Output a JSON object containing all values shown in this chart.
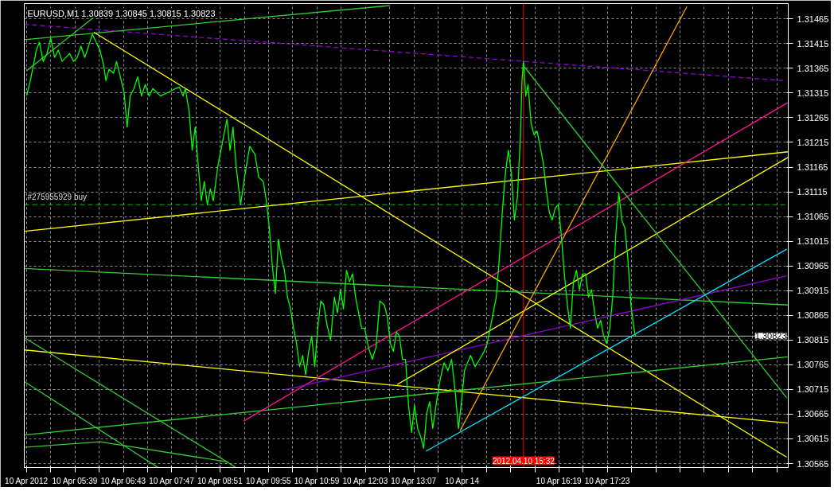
{
  "chart_data": {
    "type": "line",
    "title": "EURUSD,M1  1.30839 1.30845 1.30815 1.30823",
    "grid": true,
    "xlim": [
      "2012-04-10T04:32",
      "2012-04-10T21:22"
    ],
    "ylim": [
      1.30557,
      1.31496
    ],
    "xticks": [
      {
        "value": "2012-04-10T04:35",
        "label": "10 Apr 2012"
      },
      {
        "value": "2012-04-10T05:07",
        "label": null
      },
      {
        "value": "2012-04-10T05:39",
        "label": "10 Apr 05:39"
      },
      {
        "value": "2012-04-10T06:11",
        "label": null
      },
      {
        "value": "2012-04-10T06:43",
        "label": "10 Apr 06:43"
      },
      {
        "value": "2012-04-10T07:15",
        "label": null
      },
      {
        "value": "2012-04-10T07:47",
        "label": "10 Apr 07:47"
      },
      {
        "value": "2012-04-10T08:19",
        "label": null
      },
      {
        "value": "2012-04-10T08:51",
        "label": "10 Apr 08:51"
      },
      {
        "value": "2012-04-10T09:23",
        "label": null
      },
      {
        "value": "2012-04-10T09:55",
        "label": "10 Apr 09:55"
      },
      {
        "value": "2012-04-10T10:27",
        "label": null
      },
      {
        "value": "2012-04-10T10:59",
        "label": "10 Apr 10:59"
      },
      {
        "value": "2012-04-10T11:31",
        "label": null
      },
      {
        "value": "2012-04-10T12:03",
        "label": "10 Apr 12:03"
      },
      {
        "value": "2012-04-10T12:35",
        "label": null
      },
      {
        "value": "2012-04-10T13:07",
        "label": "10 Apr 13:07"
      },
      {
        "value": "2012-04-10T13:39",
        "label": null
      },
      {
        "value": "2012-04-10T14:11",
        "label": "10 Apr 14"
      },
      {
        "value": "2012-04-10T14:43",
        "label": null
      },
      {
        "value": "2012-04-10T15:15",
        "label": null
      },
      {
        "value": "2012-04-10T15:47",
        "label": null
      },
      {
        "value": "2012-04-10T16:19",
        "label": "10 Apr 16:19"
      },
      {
        "value": "2012-04-10T16:51",
        "label": null
      },
      {
        "value": "2012-04-10T17:23",
        "label": "10 Apr 17:23"
      },
      {
        "value": "2012-04-10T17:55",
        "label": null
      },
      {
        "value": "2012-04-10T18:27",
        "label": null
      },
      {
        "value": "2012-04-10T18:59",
        "label": null
      },
      {
        "value": "2012-04-10T19:31",
        "label": null
      },
      {
        "value": "2012-04-10T20:03",
        "label": null
      },
      {
        "value": "2012-04-10T20:35",
        "label": null
      },
      {
        "value": "2012-04-10T21:07",
        "label": null
      }
    ],
    "yticks": [
      1.30565,
      1.30615,
      1.30665,
      1.30715,
      1.30765,
      1.30815,
      1.30865,
      1.30915,
      1.30965,
      1.31015,
      1.31065,
      1.31115,
      1.31165,
      1.31215,
      1.31265,
      1.31315,
      1.31365,
      1.31415,
      1.31465
    ],
    "ref_lines": [
      {
        "axis": "y",
        "value": 1.31089,
        "label": "#275955929 buy",
        "color": "#00c000",
        "line_style": "dashed"
      },
      {
        "axis": "y",
        "value": 1.30823,
        "label": "1.30823",
        "color": "#c0c0c0"
      },
      {
        "axis": "x",
        "value": "2012-04-10T15:32",
        "label": "2012.04.10 15:32",
        "color": "#ff0000"
      }
    ],
    "series": [
      {
        "color": "#32cd32",
        "x": [
          "2012-04-10T04:32",
          "2012-04-10T12:35"
        ],
        "values": [
          1.31423,
          1.31492
        ]
      },
      {
        "color": "#32cd32",
        "x": [
          "2012-04-10T04:35",
          "2012-04-10T06:20"
        ],
        "values": [
          1.3136,
          1.31488
        ]
      },
      {
        "color": "#9400d3",
        "line_style": "dashed",
        "x": [
          "2012-04-10T04:32",
          "2012-04-10T21:17"
        ],
        "values": [
          1.31454,
          1.3134
        ]
      },
      {
        "color": "#ffff00",
        "x": [
          "2012-04-10T06:04",
          "2012-04-10T21:20"
        ],
        "values": [
          1.31438,
          1.30578
        ]
      },
      {
        "color": "#ffff00",
        "x": [
          "2012-04-10T04:32",
          "2012-04-10T21:22"
        ],
        "values": [
          1.31035,
          1.31196
        ]
      },
      {
        "color": "#32cd32",
        "x": [
          "2012-04-10T04:32",
          "2012-04-10T21:22"
        ],
        "values": [
          1.3096,
          1.30886
        ]
      },
      {
        "color": "#ffff00",
        "x": [
          "2012-04-10T04:32",
          "2012-04-10T21:22"
        ],
        "values": [
          1.30795,
          1.30647
        ]
      },
      {
        "color": "#32cd32",
        "x": [
          "2012-04-10T04:32",
          "2012-04-10T09:12"
        ],
        "values": [
          1.3082,
          1.30557
        ]
      },
      {
        "color": "#32cd32",
        "x": [
          "2012-04-10T04:32",
          "2012-04-10T07:29"
        ],
        "values": [
          1.30731,
          1.30557
        ]
      },
      {
        "color": "#32cd32",
        "x": [
          "2012-04-10T04:32",
          "2012-04-10T21:22"
        ],
        "values": [
          1.30623,
          1.30781
        ]
      },
      {
        "color": "#32cd32",
        "x": [
          "2012-04-10T04:32",
          "2012-04-10T06:12",
          "2012-04-10T09:02"
        ],
        "values": [
          1.30598,
          1.30609,
          1.30568
        ]
      },
      {
        "color": "#ff1493",
        "x": [
          "2012-04-10T09:22",
          "2012-04-10T21:22"
        ],
        "values": [
          1.30651,
          1.31296
        ]
      },
      {
        "color": "#9400d3",
        "x": [
          "2012-04-10T10:15",
          "2012-04-10T21:20"
        ],
        "values": [
          1.30714,
          1.30945
        ]
      },
      {
        "color": "#ffff00",
        "x": [
          "2012-04-10T12:45",
          "2012-04-10T21:22"
        ],
        "values": [
          1.30725,
          1.31185
        ]
      },
      {
        "color": "#ffa500",
        "x": [
          "2012-04-10T14:08",
          "2012-04-10T19:08"
        ],
        "values": [
          1.30631,
          1.3149
        ]
      },
      {
        "color": "#00e5ff",
        "x": [
          "2012-04-10T13:23",
          "2012-04-10T21:20"
        ],
        "values": [
          1.3059,
          1.30999
        ]
      },
      {
        "color": "#32cd32",
        "x": [
          "2012-04-10T15:31",
          "2012-04-10T21:20"
        ],
        "values": [
          1.31372,
          1.30698
        ]
      },
      {
        "color": "#00ff00",
        "x": [
          "2012-04-10T04:35",
          "2012-04-10T04:40",
          "2012-04-10T04:44",
          "2012-04-10T04:48",
          "2012-04-10T04:52",
          "2012-04-10T04:57",
          "2012-04-10T05:02",
          "2012-04-10T05:07",
          "2012-04-10T05:12",
          "2012-04-10T05:17",
          "2012-04-10T05:22",
          "2012-04-10T05:27",
          "2012-04-10T05:32",
          "2012-04-10T05:37",
          "2012-04-10T05:42",
          "2012-04-10T05:47",
          "2012-04-10T05:52",
          "2012-04-10T05:57",
          "2012-04-10T06:02",
          "2012-04-10T06:07",
          "2012-04-10T06:12",
          "2012-04-10T06:17",
          "2012-04-10T06:20",
          "2012-04-10T06:24",
          "2012-04-10T06:30",
          "2012-04-10T06:34",
          "2012-04-10T06:39",
          "2012-04-10T06:44",
          "2012-04-10T06:48",
          "2012-04-10T06:52",
          "2012-04-10T06:57",
          "2012-04-10T07:02",
          "2012-04-10T07:07",
          "2012-04-10T07:12",
          "2012-04-10T07:17",
          "2012-04-10T07:22",
          "2012-04-10T07:32",
          "2012-04-10T07:42",
          "2012-04-10T07:52",
          "2012-04-10T07:57",
          "2012-04-10T08:02",
          "2012-04-10T08:05",
          "2012-04-10T08:10",
          "2012-04-10T08:14",
          "2012-04-10T08:18",
          "2012-04-10T08:22",
          "2012-04-10T08:26",
          "2012-04-10T08:30",
          "2012-04-10T08:34",
          "2012-04-10T08:38",
          "2012-04-10T08:42",
          "2012-04-10T08:48",
          "2012-04-10T08:54",
          "2012-04-10T09:00",
          "2012-04-10T09:04",
          "2012-04-10T09:08",
          "2012-04-10T09:12",
          "2012-04-10T09:18",
          "2012-04-10T09:24",
          "2012-04-10T09:30",
          "2012-04-10T09:37",
          "2012-04-10T09:42",
          "2012-04-10T09:48",
          "2012-04-10T09:52",
          "2012-04-10T09:56",
          "2012-04-10T10:00",
          "2012-04-10T10:04",
          "2012-04-10T10:08",
          "2012-04-10T10:12",
          "2012-04-10T10:16",
          "2012-04-10T10:20",
          "2012-04-10T10:24",
          "2012-04-10T10:28",
          "2012-04-10T10:32",
          "2012-04-10T10:36",
          "2012-04-10T10:40",
          "2012-04-10T10:44",
          "2012-04-10T10:48",
          "2012-04-10T10:52",
          "2012-04-10T10:56",
          "2012-04-10T11:00",
          "2012-04-10T11:04",
          "2012-04-10T11:08",
          "2012-04-10T11:12",
          "2012-04-10T11:17",
          "2012-04-10T11:22",
          "2012-04-10T11:26",
          "2012-04-10T11:30",
          "2012-04-10T11:34",
          "2012-04-10T11:38",
          "2012-04-10T11:42",
          "2012-04-10T11:46",
          "2012-04-10T11:50",
          "2012-04-10T11:54",
          "2012-04-10T11:58",
          "2012-04-10T12:02",
          "2012-04-10T12:07",
          "2012-04-10T12:12",
          "2012-04-10T12:17",
          "2012-04-10T12:22",
          "2012-04-10T12:28",
          "2012-04-10T12:32",
          "2012-04-10T12:36",
          "2012-04-10T12:40",
          "2012-04-10T12:44",
          "2012-04-10T12:48",
          "2012-04-10T12:52",
          "2012-04-10T12:56",
          "2012-04-10T13:00",
          "2012-04-10T13:04",
          "2012-04-10T13:08",
          "2012-04-10T13:12",
          "2012-04-10T13:16",
          "2012-04-10T13:20",
          "2012-04-10T13:24",
          "2012-04-10T13:28",
          "2012-04-10T13:32",
          "2012-04-10T13:37",
          "2012-04-10T13:42",
          "2012-04-10T13:47",
          "2012-04-10T13:52",
          "2012-04-10T13:57",
          "2012-04-10T14:02",
          "2012-04-10T14:06",
          "2012-04-10T14:10",
          "2012-04-10T14:14",
          "2012-04-10T14:18",
          "2012-04-10T14:22",
          "2012-04-10T14:28",
          "2012-04-10T14:34",
          "2012-04-10T14:40",
          "2012-04-10T14:44",
          "2012-04-10T14:48",
          "2012-04-10T14:52",
          "2012-04-10T14:56",
          "2012-04-10T15:00",
          "2012-04-10T15:04",
          "2012-04-10T15:08",
          "2012-04-10T15:12",
          "2012-04-10T15:16",
          "2012-04-10T15:20",
          "2012-04-10T15:24",
          "2012-04-10T15:28",
          "2012-04-10T15:30",
          "2012-04-10T15:32",
          "2012-04-10T15:35",
          "2012-04-10T15:38",
          "2012-04-10T15:42",
          "2012-04-10T15:46",
          "2012-04-10T15:50",
          "2012-04-10T15:54",
          "2012-04-10T15:58",
          "2012-04-10T16:02",
          "2012-04-10T16:06",
          "2012-04-10T16:10",
          "2012-04-10T16:14",
          "2012-04-10T16:18",
          "2012-04-10T16:22",
          "2012-04-10T16:26",
          "2012-04-10T16:30",
          "2012-04-10T16:34",
          "2012-04-10T16:38",
          "2012-04-10T16:42",
          "2012-04-10T16:46",
          "2012-04-10T16:50",
          "2012-04-10T16:54",
          "2012-04-10T16:58",
          "2012-04-10T17:02",
          "2012-04-10T17:06",
          "2012-04-10T17:10",
          "2012-04-10T17:14",
          "2012-04-10T17:18",
          "2012-04-10T17:22",
          "2012-04-10T17:26",
          "2012-04-10T17:30",
          "2012-04-10T17:34",
          "2012-04-10T17:38",
          "2012-04-10T17:42",
          "2012-04-10T17:46",
          "2012-04-10T17:50",
          "2012-04-10T17:54",
          "2012-04-10T17:58",
          "2012-04-10T18:00"
        ],
        "values": [
          1.31309,
          1.3134,
          1.31371,
          1.31402,
          1.31418,
          1.31379,
          1.31395,
          1.31426,
          1.31387,
          1.31402,
          1.31379,
          1.31387,
          1.31395,
          1.31379,
          1.31387,
          1.3141,
          1.31387,
          1.3141,
          1.31434,
          1.31418,
          1.31402,
          1.31371,
          1.3134,
          1.31363,
          1.31355,
          1.31379,
          1.31348,
          1.31316,
          1.31246,
          1.31309,
          1.31324,
          1.31348,
          1.31309,
          1.31332,
          1.31309,
          1.31324,
          1.31309,
          1.31316,
          1.31324,
          1.31327,
          1.31309,
          1.31324,
          1.31277,
          1.31199,
          1.31246,
          1.31168,
          1.31097,
          1.31136,
          1.31089,
          1.31121,
          1.31097,
          1.31168,
          1.31215,
          1.31262,
          1.31199,
          1.31246,
          1.31168,
          1.31089,
          1.31152,
          1.31207,
          1.31191,
          1.31144,
          1.31136,
          1.31097,
          1.31042,
          1.30964,
          1.30909,
          1.31019,
          1.3098,
          1.30956,
          1.30902,
          1.30878,
          1.30839,
          1.30808,
          1.30761,
          1.30784,
          1.30745,
          1.30792,
          1.30823,
          1.30761,
          1.30839,
          1.30894,
          1.30886,
          1.30847,
          1.30815,
          1.30902,
          1.3087,
          1.30917,
          1.30878,
          1.30956,
          1.30933,
          1.30949,
          1.30902,
          1.3087,
          1.30839,
          1.30839,
          1.308,
          1.30776,
          1.308,
          1.30894,
          1.30886,
          1.30862,
          1.30808,
          1.30792,
          1.30831,
          1.30823,
          1.30776,
          1.30776,
          1.30683,
          1.30628,
          1.30683,
          1.30636,
          1.3062,
          1.30596,
          1.30667,
          1.3069,
          1.30636,
          1.3069,
          1.30737,
          1.30769,
          1.30753,
          1.30776,
          1.30706,
          1.30636,
          1.3069,
          1.30753,
          1.30769,
          1.30784,
          1.30761,
          1.30776,
          1.30792,
          1.30808,
          1.30839,
          1.3087,
          1.30902,
          1.3098,
          1.31074,
          1.31152,
          1.31199,
          1.31152,
          1.31058,
          1.31105,
          1.3123,
          1.3134,
          1.31379,
          1.31309,
          1.31332,
          1.31254,
          1.3123,
          1.31238,
          1.31207,
          1.31175,
          1.31121,
          1.31074,
          1.31058,
          1.31082,
          1.31089,
          1.31027,
          1.30949,
          1.30886,
          1.30839,
          1.30933,
          1.30956,
          1.30917,
          1.30949,
          1.30949,
          1.30902,
          1.30917,
          1.3087,
          1.30839,
          1.30855,
          1.30823,
          1.30808,
          1.30839,
          1.30902,
          1.31027,
          1.31113,
          1.31058,
          1.31042,
          1.3098,
          1.30886,
          1.30839,
          1.30823
        ]
      }
    ]
  }
}
